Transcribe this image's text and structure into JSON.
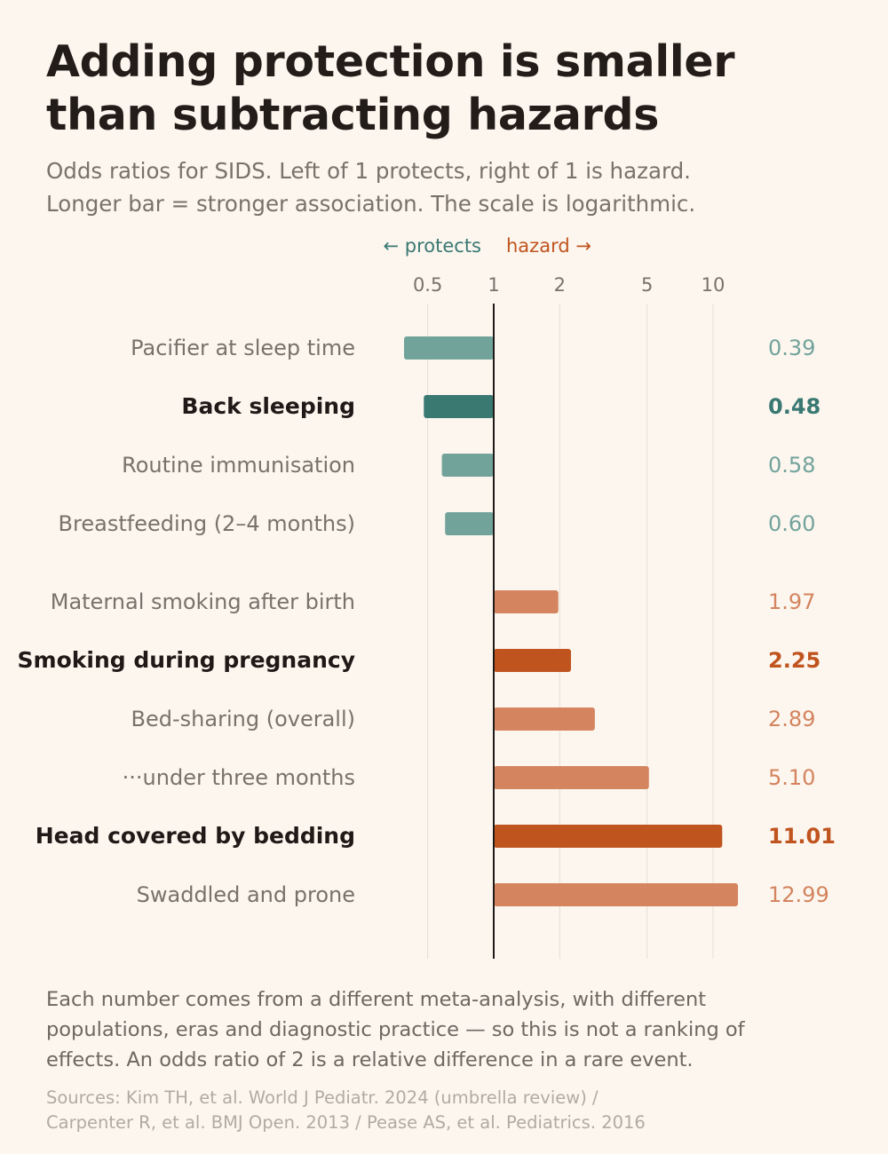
{
  "title_line1": "Adding protection is smaller",
  "title_line2": "than subtracting hazards",
  "subtitle_line1": "Odds ratios for SIDS. Left of 1 protects, right of 1 is hazard.",
  "subtitle_line2": "Longer bar = stronger association. The scale is logarithmic.",
  "direction_labels": {
    "protects": "← protects",
    "hazard": "hazard →"
  },
  "colors": {
    "background": "#fcf6ef",
    "protect": "#72a39b",
    "protect_emphasis": "#3a7872",
    "hazard": "#d4845e",
    "hazard_emphasis": "#c0541f",
    "grid": "#e5ddd3",
    "axis": "#1f1a17",
    "label": "#7a716a",
    "label_emphasis": "#1f1a17"
  },
  "chart_data": {
    "type": "bar",
    "orientation": "horizontal",
    "x_scale": "log",
    "reference_value": 1,
    "x_ticks": [
      0.5,
      1,
      2,
      5,
      10
    ],
    "x_tick_labels": [
      "0.5",
      "1",
      "2",
      "5",
      "10"
    ],
    "categories": [
      "Pacifier at sleep time",
      "Back sleeping",
      "Routine immunisation",
      "Breastfeeding (2–4 months)",
      "Maternal smoking after birth",
      "Smoking during pregnancy",
      "Bed-sharing (overall)",
      "···under three months",
      "Head covered by bedding",
      "Swaddled and prone"
    ],
    "values": [
      0.39,
      0.48,
      0.58,
      0.6,
      1.97,
      2.25,
      2.89,
      5.1,
      11.01,
      12.99
    ],
    "value_labels": [
      "0.39",
      "0.48",
      "0.58",
      "0.60",
      "1.97",
      "2.25",
      "2.89",
      "5.10",
      "11.01",
      "12.99"
    ],
    "groups": [
      "protect",
      "protect",
      "protect",
      "protect",
      "hazard",
      "hazard",
      "hazard",
      "hazard",
      "hazard",
      "hazard"
    ],
    "emphasis": [
      false,
      true,
      false,
      false,
      false,
      true,
      false,
      false,
      true,
      false
    ],
    "grid": true
  },
  "footnote_line1": "Each number comes from a different meta-analysis, with different",
  "footnote_line2": "populations, eras and diagnostic practice — so this is not a ranking of",
  "footnote_line3": "effects. An odds ratio of 2 is a relative difference in a rare event.",
  "sources_line1": "Sources: Kim TH, et al. World J Pediatr. 2024 (umbrella review) /",
  "sources_line2": "Carpenter R, et al. BMJ Open. 2013 / Pease AS, et al. Pediatrics. 2016"
}
